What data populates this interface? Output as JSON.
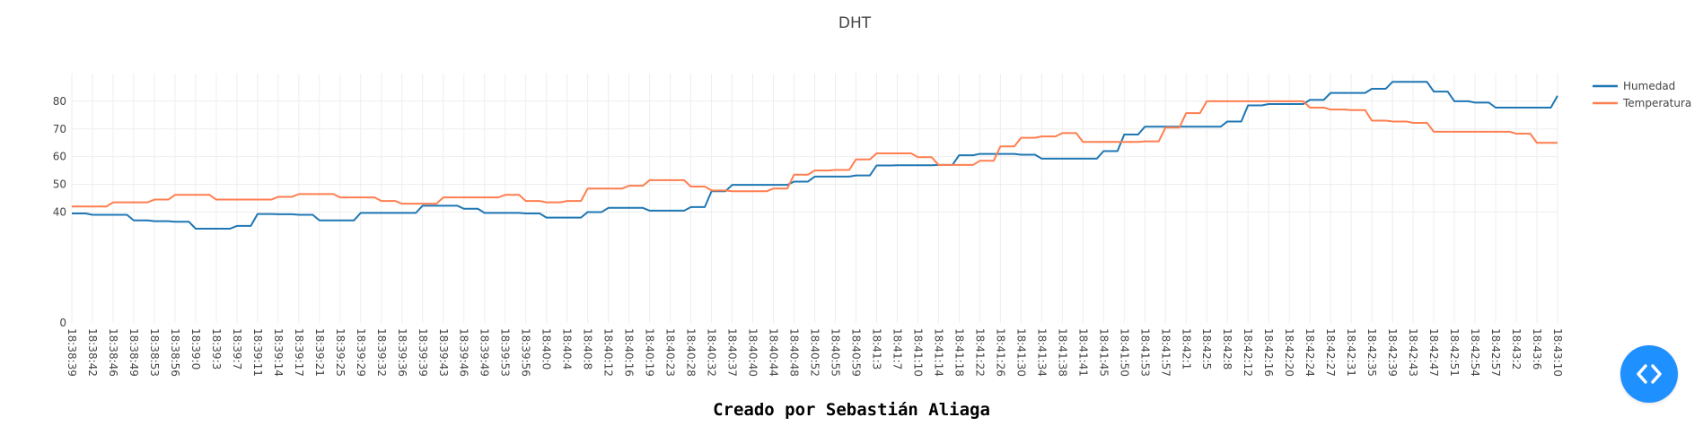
{
  "footer": {
    "credit": "Creado por Sebastián Aliaga"
  },
  "fab": {
    "icon": "code-icon",
    "color": "#1e90ff"
  },
  "chart_data": {
    "type": "line",
    "title": "DHT",
    "xlabel": "",
    "ylabel": "",
    "ylim": [
      0,
      90
    ],
    "yticks": [
      0,
      40,
      50,
      60,
      70,
      80
    ],
    "grid": true,
    "legend_position": "top-right",
    "x": [
      "18:38:39",
      "18:38:42",
      "18:38:46",
      "18:38:49",
      "18:38:53",
      "18:38:56",
      "18:39:0",
      "18:39:3",
      "18:39:7",
      "18:39:11",
      "18:39:14",
      "18:39:17",
      "18:39:21",
      "18:39:25",
      "18:39:29",
      "18:39:32",
      "18:39:36",
      "18:39:39",
      "18:39:43",
      "18:39:46",
      "18:39:49",
      "18:39:53",
      "18:39:56",
      "18:40:0",
      "18:40:4",
      "18:40:8",
      "18:40:12",
      "18:40:16",
      "18:40:19",
      "18:40:23",
      "18:40:28",
      "18:40:32",
      "18:40:37",
      "18:40:40",
      "18:40:44",
      "18:40:48",
      "18:40:52",
      "18:40:55",
      "18:40:59",
      "18:41:3",
      "18:41:7",
      "18:41:10",
      "18:41:14",
      "18:41:18",
      "18:41:22",
      "18:41:26",
      "18:41:30",
      "18:41:34",
      "18:41:38",
      "18:41:41",
      "18:41:45",
      "18:41:50",
      "18:41:53",
      "18:41:57",
      "18:42:1",
      "18:42:5",
      "18:42:8",
      "18:42:12",
      "18:42:16",
      "18:42:20",
      "18:42:24",
      "18:42:27",
      "18:42:31",
      "18:42:35",
      "18:42:39",
      "18:42:43",
      "18:42:47",
      "18:42:51",
      "18:42:54",
      "18:42:57",
      "18:43:2",
      "18:43:6",
      "18:43:10"
    ],
    "series": [
      {
        "name": "Humedad",
        "color": "#1f77b4",
        "values": [
          39.5,
          39,
          39,
          37,
          36.7,
          36.5,
          34,
          34,
          35,
          39.3,
          39.2,
          39,
          37,
          37,
          39.7,
          39.7,
          39.7,
          42.3,
          42.3,
          41.2,
          39.7,
          39.7,
          39.5,
          38,
          38,
          40,
          41.5,
          41.5,
          40.5,
          40.5,
          41.8,
          47.5,
          49.8,
          49.8,
          49.8,
          51,
          52.8,
          52.8,
          53.2,
          56.8,
          56.9,
          56.9,
          57,
          60.5,
          61,
          61,
          60.7,
          59.3,
          59.3,
          59.3,
          62,
          68,
          70.8,
          70.8,
          70.8,
          70.8,
          72.7,
          78.5,
          79,
          79,
          80.5,
          83,
          83,
          84.5,
          87,
          87,
          83.5,
          80,
          79.5,
          77.7,
          77.7,
          77.7,
          82
        ]
      },
      {
        "name": "Temperatura",
        "color": "#ff7f50",
        "values": [
          42,
          42,
          43.5,
          43.5,
          44.5,
          46.2,
          46.2,
          44.5,
          44.5,
          44.5,
          45.5,
          46.5,
          46.5,
          45.3,
          45.3,
          44,
          43,
          43,
          45.3,
          45.3,
          45.3,
          46.2,
          44,
          43.5,
          44,
          48.5,
          48.5,
          49.5,
          51.5,
          51.5,
          49.2,
          47.8,
          47.5,
          47.5,
          48.5,
          53.5,
          55,
          55.2,
          59,
          61.2,
          61.2,
          59.8,
          57,
          57,
          58.5,
          63.7,
          66.8,
          67.3,
          68.5,
          65.3,
          65.3,
          65.3,
          65.5,
          70.5,
          75.7,
          80,
          80,
          80,
          80,
          80,
          77.7,
          77,
          76.8,
          73,
          72.7,
          72.2,
          69,
          69,
          69,
          69,
          68.3,
          65,
          65
        ]
      }
    ]
  }
}
